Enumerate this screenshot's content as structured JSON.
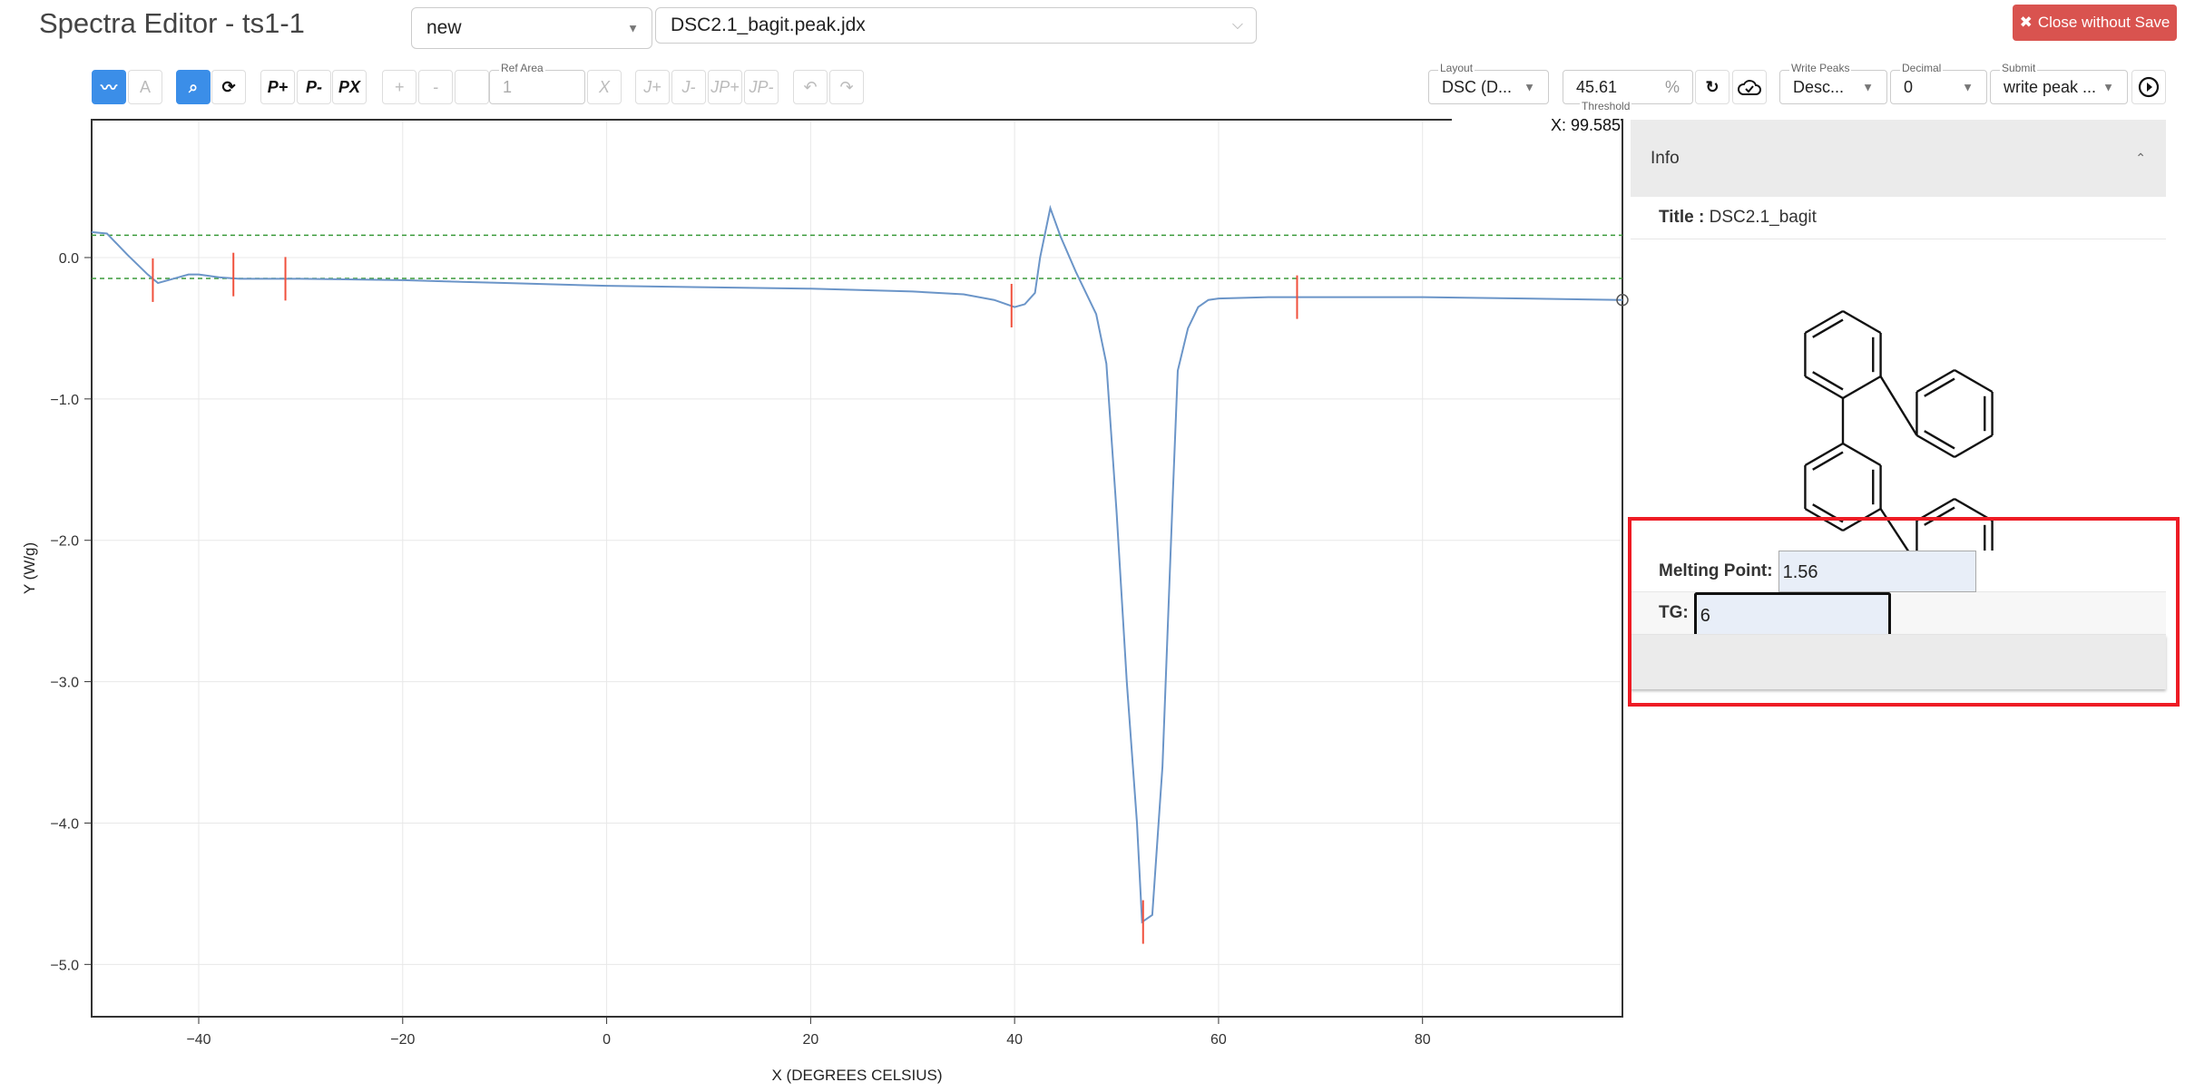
{
  "header": {
    "title": "Spectra Editor - ts1-1",
    "operation_select": "new",
    "file_select": "DSC2.1_bagit.peak.jdx",
    "close_button": "Close without Save"
  },
  "toolbar": {
    "left_buttons": [
      {
        "name": "line-view-button",
        "label": "",
        "icon": "line-chart-icon",
        "state": "active"
      },
      {
        "name": "annotate-button",
        "label": "",
        "icon": "peak-label-icon",
        "state": "disabled"
      },
      {
        "name": "zoom-button",
        "label": "",
        "icon": "zoom-in-icon",
        "state": "active"
      },
      {
        "name": "reset-zoom-button",
        "label": "",
        "icon": "zoom-reset-icon",
        "state": "normal"
      },
      {
        "name": "add-peak-button",
        "label": "P+",
        "state": "normal"
      },
      {
        "name": "remove-peak-button",
        "label": "P-",
        "state": "normal"
      },
      {
        "name": "clear-peaks-button",
        "label": "PX",
        "state": "normal"
      },
      {
        "name": "add-integration-button",
        "label": "+",
        "state": "disabled"
      },
      {
        "name": "remove-integration-button",
        "label": "-",
        "state": "disabled"
      },
      {
        "name": "integration-blank-button",
        "label": "",
        "state": "disabled"
      },
      {
        "name": "clear-integration-button",
        "label": "X",
        "state": "disabled"
      },
      {
        "name": "add-multiplet-button",
        "label": "J+",
        "state": "disabled"
      },
      {
        "name": "remove-multiplet-button",
        "label": "J-",
        "state": "disabled"
      },
      {
        "name": "add-multiplet-peak-button",
        "label": "JP+",
        "state": "disabled"
      },
      {
        "name": "remove-multiplet-peak-button",
        "label": "JP-",
        "state": "disabled"
      },
      {
        "name": "undo-button",
        "label": "",
        "icon": "undo-icon",
        "state": "disabled"
      },
      {
        "name": "redo-button",
        "label": "",
        "icon": "redo-icon",
        "state": "disabled"
      }
    ],
    "ref_area": {
      "label": "Ref Area",
      "value": "1"
    },
    "layout": {
      "label": "Layout",
      "value": "DSC (D..."
    },
    "threshold": {
      "label": "Threshold",
      "value": "45.61",
      "unit": "%"
    },
    "write_peaks": {
      "label": "Write Peaks",
      "value": "Desc..."
    },
    "decimal": {
      "label": "Decimal",
      "value": "0"
    },
    "submit": {
      "label": "Submit",
      "value": "write peak ..."
    }
  },
  "cursor_readout": "X: 99.585",
  "panel": {
    "info_title": "Info",
    "title_label": "Title :",
    "title_value": "DSC2.1_bagit",
    "melting_point_label": "Melting Point:",
    "melting_point_value": "1.56",
    "tg_label": "TG:",
    "tg_value": "6"
  },
  "colors": {
    "accent": "#3b8ee8",
    "close": "#d9534f",
    "curve": "#6b95c8",
    "peak": "#f0503c",
    "threshold": "#3a9a3a",
    "highlight": "#ee1c25"
  },
  "chart_data": {
    "type": "line",
    "xlabel": "X (DEGREES CELSIUS)",
    "ylabel": "Y (W/g)",
    "xlim": [
      -50.5,
      99.6
    ],
    "ylim": [
      -5.37,
      0.975
    ],
    "xticks": [
      -40,
      -20,
      0,
      20,
      40,
      60,
      80
    ],
    "yticks": [
      0,
      -1,
      -2,
      -3,
      -4,
      -5
    ],
    "xtick_labels": [
      "−40",
      "−20",
      "0",
      "20",
      "40",
      "60",
      "80"
    ],
    "ytick_labels": [
      "0.0",
      "−1.0",
      "−2.0",
      "−3.0",
      "−4.0",
      "−5.0"
    ],
    "grid": true,
    "threshold_lines": [
      0.158,
      -0.148
    ],
    "x": [
      -50.5,
      -49,
      -47,
      -45,
      -44,
      -43,
      -41,
      -40,
      -38,
      -36,
      -30,
      -20,
      -10,
      0,
      10,
      20,
      30,
      35,
      38,
      40,
      41,
      42,
      42.5,
      43.5,
      44.5,
      46,
      48,
      49,
      50,
      51,
      52,
      52.5,
      53.5,
      54.5,
      55.5,
      56,
      57,
      58,
      59,
      60,
      65,
      70,
      80,
      90,
      99.6
    ],
    "y": [
      0.18,
      0.17,
      0.02,
      -0.12,
      -0.18,
      -0.16,
      -0.12,
      -0.12,
      -0.14,
      -0.15,
      -0.15,
      -0.16,
      -0.18,
      -0.2,
      -0.21,
      -0.22,
      -0.24,
      -0.26,
      -0.3,
      -0.35,
      -0.33,
      -0.25,
      0.0,
      0.35,
      0.15,
      -0.1,
      -0.4,
      -0.75,
      -1.8,
      -3.0,
      -4.0,
      -4.7,
      -4.65,
      -3.6,
      -1.7,
      -0.8,
      -0.5,
      -0.35,
      -0.3,
      -0.29,
      -0.28,
      -0.28,
      -0.28,
      -0.29,
      -0.3
    ],
    "peaks": [
      [
        -44.5,
        -0.16
      ],
      [
        -36.6,
        -0.12
      ],
      [
        -31.5,
        -0.15
      ],
      [
        39.7,
        -0.34
      ],
      [
        52.6,
        -4.7
      ],
      [
        67.7,
        -0.28
      ]
    ]
  }
}
